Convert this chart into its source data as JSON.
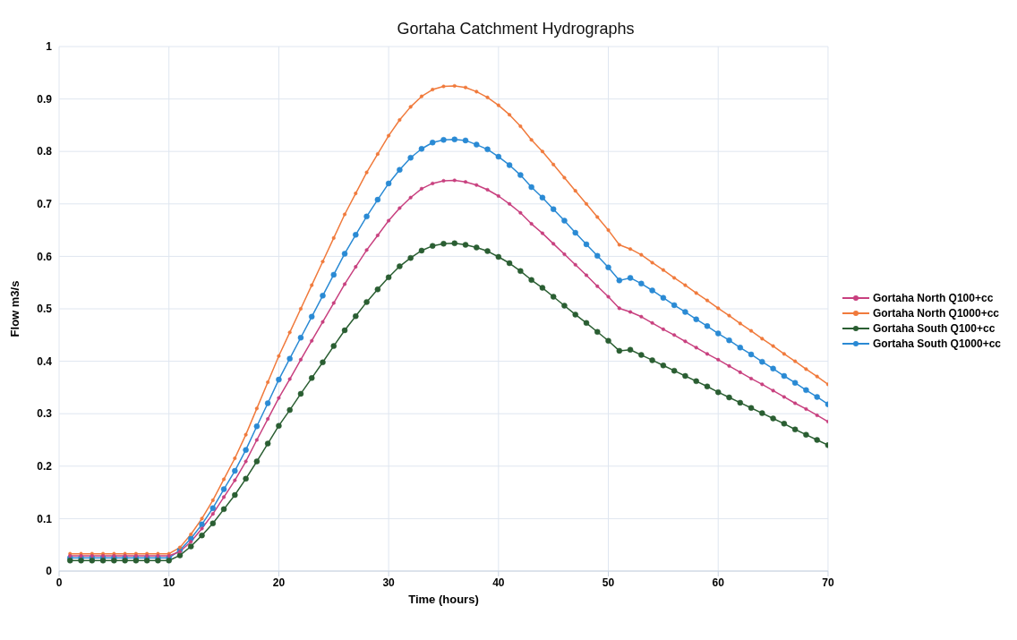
{
  "chart_data": {
    "type": "line",
    "title": "Gortaha Catchment Hydrographs",
    "xlabel": "Time (hours)",
    "ylabel": "Flow m3/s",
    "x": [
      1,
      2,
      3,
      4,
      5,
      6,
      7,
      8,
      9,
      10,
      11,
      12,
      13,
      14,
      15,
      16,
      17,
      18,
      19,
      20,
      21,
      22,
      23,
      24,
      25,
      26,
      27,
      28,
      29,
      30,
      31,
      32,
      33,
      34,
      35,
      36,
      37,
      38,
      39,
      40,
      41,
      42,
      43,
      44,
      45,
      46,
      47,
      48,
      49,
      50,
      51,
      52,
      53,
      54,
      55,
      56,
      57,
      58,
      59,
      60,
      61,
      62,
      63,
      64,
      65,
      66,
      67,
      68,
      69,
      70
    ],
    "xlim": [
      0,
      70
    ],
    "xticks": [
      0,
      10,
      20,
      30,
      40,
      50,
      60,
      70
    ],
    "ylim": [
      0,
      1
    ],
    "yticks": [
      0,
      0.1,
      0.2,
      0.3,
      0.4,
      0.5,
      0.6,
      0.7,
      0.8,
      0.9,
      1
    ],
    "grid": true,
    "legend": "right",
    "marker": "circle",
    "line_style": "solid",
    "series": [
      {
        "name": "Gortaha North Q100+cc",
        "color": "#c8407f",
        "values": [
          0.029,
          0.029,
          0.029,
          0.029,
          0.029,
          0.029,
          0.029,
          0.029,
          0.029,
          0.029,
          0.037,
          0.056,
          0.081,
          0.109,
          0.141,
          0.173,
          0.209,
          0.25,
          0.29,
          0.33,
          0.366,
          0.403,
          0.439,
          0.475,
          0.511,
          0.547,
          0.58,
          0.612,
          0.64,
          0.668,
          0.692,
          0.712,
          0.729,
          0.739,
          0.744,
          0.745,
          0.742,
          0.736,
          0.727,
          0.715,
          0.7,
          0.683,
          0.662,
          0.644,
          0.624,
          0.604,
          0.584,
          0.564,
          0.543,
          0.523,
          0.501,
          0.494,
          0.485,
          0.473,
          0.461,
          0.45,
          0.438,
          0.426,
          0.414,
          0.403,
          0.391,
          0.379,
          0.367,
          0.356,
          0.344,
          0.332,
          0.32,
          0.309,
          0.297,
          0.285
        ]
      },
      {
        "name": "Gortaha North Q1000+cc",
        "color": "#f07a3c",
        "values": [
          0.033,
          0.033,
          0.033,
          0.033,
          0.033,
          0.033,
          0.033,
          0.033,
          0.033,
          0.033,
          0.045,
          0.07,
          0.1,
          0.135,
          0.175,
          0.215,
          0.26,
          0.31,
          0.36,
          0.41,
          0.455,
          0.5,
          0.545,
          0.59,
          0.635,
          0.68,
          0.72,
          0.76,
          0.795,
          0.83,
          0.86,
          0.885,
          0.905,
          0.918,
          0.924,
          0.925,
          0.922,
          0.914,
          0.903,
          0.888,
          0.87,
          0.848,
          0.822,
          0.8,
          0.775,
          0.75,
          0.725,
          0.7,
          0.675,
          0.65,
          0.622,
          0.614,
          0.603,
          0.588,
          0.574,
          0.559,
          0.545,
          0.53,
          0.516,
          0.501,
          0.487,
          0.472,
          0.458,
          0.443,
          0.429,
          0.414,
          0.4,
          0.385,
          0.371,
          0.356
        ]
      },
      {
        "name": "Gortaha South Q100+cc",
        "color": "#2a5e32",
        "values": [
          0.02,
          0.02,
          0.02,
          0.02,
          0.02,
          0.02,
          0.02,
          0.02,
          0.02,
          0.02,
          0.03,
          0.047,
          0.068,
          0.091,
          0.118,
          0.145,
          0.176,
          0.209,
          0.243,
          0.277,
          0.307,
          0.338,
          0.368,
          0.398,
          0.429,
          0.459,
          0.486,
          0.513,
          0.537,
          0.56,
          0.581,
          0.597,
          0.611,
          0.62,
          0.624,
          0.625,
          0.622,
          0.617,
          0.61,
          0.599,
          0.587,
          0.572,
          0.555,
          0.54,
          0.523,
          0.506,
          0.489,
          0.473,
          0.456,
          0.439,
          0.42,
          0.422,
          0.412,
          0.402,
          0.392,
          0.382,
          0.372,
          0.362,
          0.352,
          0.341,
          0.331,
          0.321,
          0.311,
          0.301,
          0.291,
          0.281,
          0.27,
          0.26,
          0.25,
          0.24
        ]
      },
      {
        "name": "Gortaha South Q1000+cc",
        "color": "#2a8ad4",
        "values": [
          0.025,
          0.025,
          0.025,
          0.025,
          0.025,
          0.025,
          0.025,
          0.025,
          0.025,
          0.025,
          0.04,
          0.062,
          0.089,
          0.12,
          0.156,
          0.191,
          0.231,
          0.276,
          0.32,
          0.365,
          0.405,
          0.445,
          0.485,
          0.525,
          0.565,
          0.605,
          0.641,
          0.676,
          0.708,
          0.739,
          0.765,
          0.788,
          0.805,
          0.817,
          0.822,
          0.823,
          0.821,
          0.813,
          0.804,
          0.79,
          0.774,
          0.755,
          0.732,
          0.712,
          0.69,
          0.668,
          0.645,
          0.623,
          0.601,
          0.579,
          0.554,
          0.559,
          0.548,
          0.535,
          0.521,
          0.507,
          0.494,
          0.48,
          0.467,
          0.453,
          0.44,
          0.426,
          0.413,
          0.399,
          0.386,
          0.372,
          0.359,
          0.345,
          0.332,
          0.318
        ]
      }
    ]
  }
}
